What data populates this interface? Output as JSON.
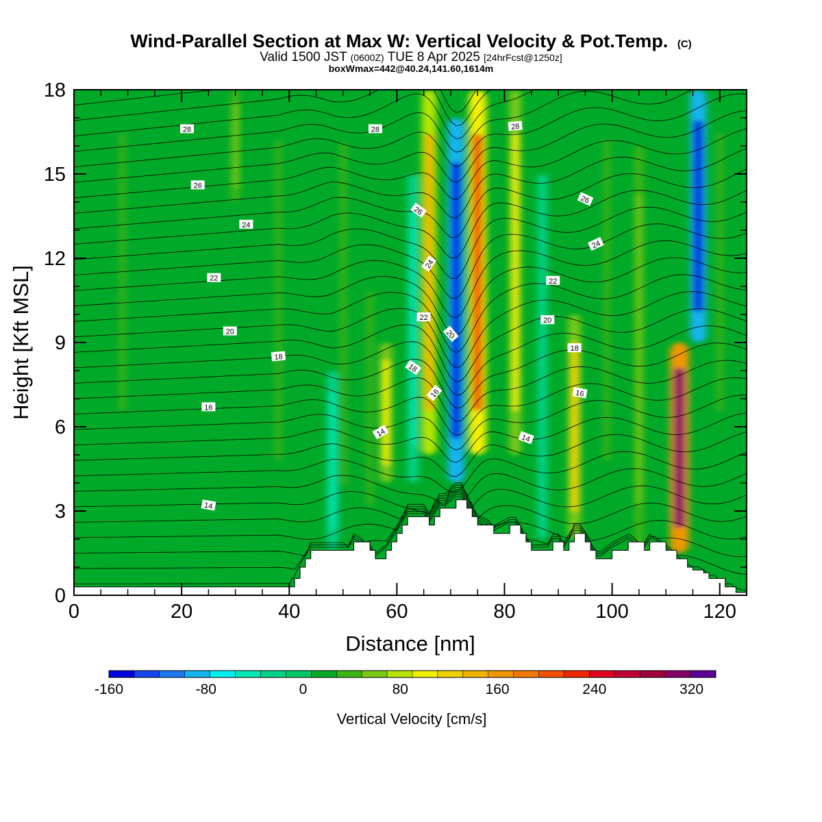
{
  "chart_data": {
    "type": "heatmap",
    "title": "Wind-Parallel Section at Max W: Vertical Velocity & Pot.Temp.",
    "title_mark": "(C)",
    "subtitle": {
      "main": "Valid 1500 JST",
      "utc": "(0600Z)",
      "date": "TUE 8 Apr 2025",
      "fcst": "[24hrFcst@1250z]"
    },
    "box_info": "boxWmax=442@40.24,141.60,1614m",
    "xlabel": "Distance [nm]",
    "ylabel": "Height [Kft MSL]",
    "xlim": [
      0,
      125
    ],
    "ylim": [
      0,
      18
    ],
    "x_ticks": [
      "0",
      "20",
      "40",
      "60",
      "80",
      "100",
      "120"
    ],
    "y_ticks": [
      "0",
      "3",
      "6",
      "9",
      "12",
      "15",
      "18"
    ],
    "colorbar": {
      "label": "Vertical Velocity [cm/s]",
      "ticks": [
        "-160",
        "-80",
        "0",
        "80",
        "160",
        "240",
        "320"
      ],
      "range": [
        -160,
        340
      ],
      "step": 20,
      "colors": [
        "#0000e0",
        "#1444ee",
        "#1e78f0",
        "#14b4f0",
        "#00f0f0",
        "#00e6b4",
        "#00d28c",
        "#00c864",
        "#00aa28",
        "#3cb414",
        "#78c814",
        "#b4e600",
        "#f0f000",
        "#f0d200",
        "#f0b400",
        "#f09600",
        "#f07800",
        "#f05000",
        "#f02800",
        "#e0001e",
        "#c00032",
        "#a0003c",
        "#820064",
        "#5a0096"
      ]
    },
    "vertical_velocity_features": [
      {
        "x": 9,
        "z_range": [
          5,
          18
        ],
        "w": 20
      },
      {
        "x": 30,
        "z_range": [
          14,
          18
        ],
        "w": 40
      },
      {
        "x": 38,
        "z_range": [
          3,
          18
        ],
        "w": 30
      },
      {
        "x": 48,
        "z_range": [
          1.6,
          8
        ],
        "w": -60
      },
      {
        "x": 50,
        "z_range": [
          2,
          18
        ],
        "w": 30
      },
      {
        "x": 55,
        "z_range": [
          2,
          12
        ],
        "w": 30
      },
      {
        "x": 58,
        "z_range": [
          4,
          9
        ],
        "w": 90
      },
      {
        "x": 63,
        "z_range": [
          4,
          15
        ],
        "w": -60
      },
      {
        "x": 66,
        "z_range": [
          5,
          18
        ],
        "w": 130
      },
      {
        "x": 71,
        "z_range": [
          4,
          17
        ],
        "w": -160
      },
      {
        "x": 75,
        "z_range": [
          5,
          18
        ],
        "w": 180
      },
      {
        "x": 82,
        "z_range": [
          5,
          18
        ],
        "w": 80
      },
      {
        "x": 87,
        "z_range": [
          2,
          15
        ],
        "w": -40
      },
      {
        "x": 93,
        "z_range": [
          2,
          10
        ],
        "w": 100
      },
      {
        "x": 99,
        "z_range": [
          3,
          18
        ],
        "w": 30
      },
      {
        "x": 105,
        "z_range": [
          1.5,
          16
        ],
        "w": 40
      },
      {
        "x": 112.5,
        "z_range": [
          1.5,
          9
        ],
        "w": 280
      },
      {
        "x": 116,
        "z_range": [
          9,
          18
        ],
        "w": -150
      },
      {
        "x": 120,
        "z_range": [
          5,
          18
        ],
        "w": 30
      }
    ],
    "terrain_kft": {
      "x": [
        0,
        40,
        41,
        42,
        43,
        44,
        46,
        51,
        52,
        55,
        56,
        58,
        59,
        60,
        61,
        62,
        65,
        66,
        67,
        68,
        69,
        71,
        72,
        73,
        74,
        75,
        78,
        81,
        82,
        83,
        84,
        85,
        88,
        89,
        90,
        91,
        92,
        93,
        94,
        95,
        96,
        97,
        98,
        100,
        103,
        106,
        107,
        108,
        110,
        112,
        114,
        115,
        116,
        117,
        118,
        119,
        121,
        122,
        123,
        125
      ],
      "z": [
        0.3,
        0.3,
        0.6,
        1.0,
        1.3,
        1.6,
        1.6,
        1.6,
        1.9,
        1.6,
        1.3,
        1.6,
        1.9,
        2.2,
        2.5,
        2.8,
        2.8,
        2.5,
        2.8,
        3.1,
        3.1,
        3.4,
        3.4,
        3.1,
        2.8,
        2.5,
        2.2,
        2.5,
        2.5,
        2.2,
        1.9,
        1.6,
        1.6,
        1.9,
        1.9,
        1.6,
        1.9,
        2.2,
        2.2,
        1.9,
        1.6,
        1.3,
        1.3,
        1.6,
        1.9,
        1.6,
        1.9,
        1.9,
        1.6,
        1.3,
        1.0,
        0.9,
        0.9,
        0.8,
        0.6,
        0.6,
        0.3,
        0.3,
        0.1,
        0.1
      ]
    },
    "theta_label_texts": [
      "14",
      "14",
      "14",
      "16",
      "16",
      "16",
      "18",
      "18",
      "18",
      "20",
      "20",
      "20",
      "22",
      "22",
      "22",
      "24",
      "24",
      "24",
      "26",
      "26",
      "26",
      "28",
      "28",
      "28"
    ],
    "theta_label_points": [
      {
        "text": "14",
        "x": 25,
        "z": 3.2,
        "angle": 10
      },
      {
        "text": "14",
        "x": 57,
        "z": 5.8,
        "angle": -30
      },
      {
        "text": "14",
        "x": 84,
        "z": 5.6,
        "angle": 20
      },
      {
        "text": "16",
        "x": 25,
        "z": 6.7,
        "angle": 0
      },
      {
        "text": "16",
        "x": 67,
        "z": 7.2,
        "angle": -50
      },
      {
        "text": "16",
        "x": 94,
        "z": 7.2,
        "angle": 10
      },
      {
        "text": "18",
        "x": 38,
        "z": 8.5,
        "angle": -5
      },
      {
        "text": "18",
        "x": 63,
        "z": 8.1,
        "angle": 35
      },
      {
        "text": "18",
        "x": 93,
        "z": 8.8,
        "angle": 0
      },
      {
        "text": "20",
        "x": 29,
        "z": 9.4,
        "angle": 0
      },
      {
        "text": "20",
        "x": 70,
        "z": 9.3,
        "angle": 50
      },
      {
        "text": "20",
        "x": 88,
        "z": 9.8,
        "angle": 0
      },
      {
        "text": "22",
        "x": 26,
        "z": 11.3,
        "angle": 0
      },
      {
        "text": "22",
        "x": 65,
        "z": 9.9,
        "angle": 0
      },
      {
        "text": "22",
        "x": 89,
        "z": 11.2,
        "angle": 0
      },
      {
        "text": "24",
        "x": 32,
        "z": 13.2,
        "angle": 0
      },
      {
        "text": "24",
        "x": 66,
        "z": 11.8,
        "angle": -55
      },
      {
        "text": "24",
        "x": 97,
        "z": 12.5,
        "angle": -25
      },
      {
        "text": "26",
        "x": 23,
        "z": 14.6,
        "angle": 0
      },
      {
        "text": "26",
        "x": 64,
        "z": 13.7,
        "angle": 35
      },
      {
        "text": "26",
        "x": 95,
        "z": 14.1,
        "angle": 25
      },
      {
        "text": "28",
        "x": 21,
        "z": 16.6,
        "angle": 0
      },
      {
        "text": "28",
        "x": 56,
        "z": 16.6,
        "angle": 0
      },
      {
        "text": "28",
        "x": 82,
        "z": 16.7,
        "angle": -5
      }
    ]
  }
}
